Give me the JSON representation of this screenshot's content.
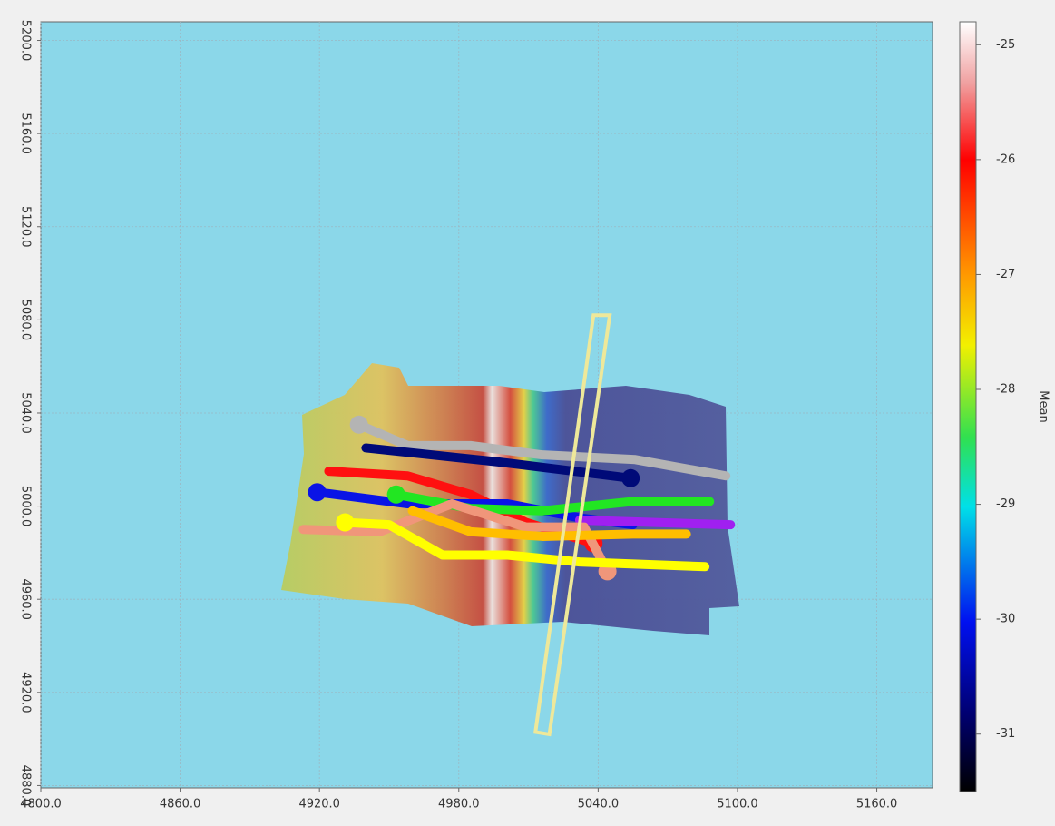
{
  "chart_data": {
    "type": "map",
    "xlim": [
      4800,
      5184
    ],
    "ylim": [
      4879,
      5208
    ],
    "xticks": [
      {
        "value": 4800,
        "label": "4800.0"
      },
      {
        "value": 4860,
        "label": "4860.0"
      },
      {
        "value": 4920,
        "label": "4920.0"
      },
      {
        "value": 4980,
        "label": "4980.0"
      },
      {
        "value": 5040,
        "label": "5040.0"
      },
      {
        "value": 5100,
        "label": "5100.0"
      },
      {
        "value": 5160,
        "label": "5160.0"
      }
    ],
    "yticks": [
      {
        "value": 4880,
        "label": "4880.0"
      },
      {
        "value": 4920,
        "label": "4920.0"
      },
      {
        "value": 4960,
        "label": "4960.0"
      },
      {
        "value": 5000,
        "label": "5000.0"
      },
      {
        "value": 5040,
        "label": "5040.0"
      },
      {
        "value": 5080,
        "label": "5080.0"
      },
      {
        "value": 5120,
        "label": "5120.0"
      },
      {
        "value": 5160,
        "label": "5160.0"
      },
      {
        "value": 5200,
        "label": "5200.0"
      }
    ],
    "grid": true,
    "colorbar": {
      "label": "Mean",
      "lim": [
        -31.5,
        -24.8
      ],
      "ticks": [
        -25,
        -26,
        -27,
        -28,
        -29,
        -30,
        -31
      ]
    },
    "series": [
      {
        "color": "#b4b4b4",
        "marker": "start",
        "x": [
          4937,
          4958,
          4985,
          5016,
          5056,
          5095
        ],
        "y": [
          5035,
          5026,
          5026,
          5022,
          5020,
          5013
        ]
      },
      {
        "color": "#000a78",
        "marker": "end",
        "x": [
          4940,
          4997,
          5054
        ],
        "y": [
          5025,
          5019,
          5012
        ]
      },
      {
        "color": "#ff1010",
        "marker": "end",
        "x": [
          4924,
          4958,
          4985,
          5009,
          5038
        ],
        "y": [
          5015,
          5013,
          5005,
          4993,
          4984
        ]
      },
      {
        "color": "#0a14e6",
        "marker": "start",
        "x": [
          4919,
          4958,
          5001,
          5032,
          5055
        ],
        "y": [
          5006,
          5001,
          5001,
          4995,
          4992
        ]
      },
      {
        "color": "#22e622",
        "marker": "start",
        "x": [
          4953,
          4985,
          5016,
          5055,
          5088
        ],
        "y": [
          5005,
          4999,
          4998,
          5002,
          5002
        ]
      },
      {
        "color": "#a020f0",
        "marker": "none",
        "x": [
          5032,
          5063,
          5097
        ],
        "y": [
          4994,
          4993,
          4992
        ]
      },
      {
        "color": "#f0967a",
        "marker": "end",
        "x": [
          4913,
          4946,
          4977,
          5009,
          5034,
          5044
        ],
        "y": [
          4990,
          4989,
          5001,
          4991,
          4991,
          4972
        ]
      },
      {
        "color": "#ffbe00",
        "marker": "none",
        "x": [
          4960,
          4985,
          5016,
          5055,
          5078
        ],
        "y": [
          4998,
          4989,
          4987,
          4988,
          4988
        ]
      },
      {
        "color": "#ffff00",
        "marker": "start",
        "x": [
          4931,
          4950,
          4973,
          5001,
          5032,
          5086
        ],
        "y": [
          4993,
          4992,
          4979,
          4979,
          4976,
          4974
        ]
      }
    ],
    "selection": {
      "color": "#eee89a",
      "x": [
        5038,
        5045,
        5019,
        5013
      ],
      "y": [
        5082,
        5082,
        4902,
        4903
      ]
    }
  }
}
